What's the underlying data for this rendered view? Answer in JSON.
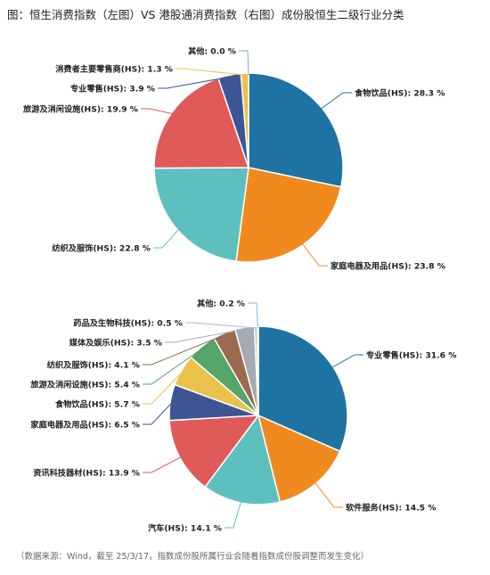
{
  "title": "图：恒生消费指数（左图）VS 港股通消费指数（右图）成份股恒生二级行业分类",
  "source": "（数据来源：Wind，截至 25/3/17，指数成份股所属行业会随着指数成份股调整而发生变化）",
  "chart_data": [
    {
      "type": "pie",
      "title": "",
      "slices": [
        {
          "label": "食物饮品(HS): 28.3 %",
          "value": 28.3,
          "color": "#1f73a3"
        },
        {
          "label": "家庭电器及用品(HS): 23.8 %",
          "value": 23.8,
          "color": "#f08a1e"
        },
        {
          "label": "纺织及服饰(HS): 22.8 %",
          "value": 22.8,
          "color": "#5ec0be"
        },
        {
          "label": "旅游及消闲设施(HS): 19.9 %",
          "value": 19.9,
          "color": "#e05a5a"
        },
        {
          "label": "专业零售(HS): 3.9 %",
          "value": 3.9,
          "color": "#3e5594"
        },
        {
          "label": "消费者主要零售商(HS): 1.3 %",
          "value": 1.3,
          "color": "#e8c24a"
        },
        {
          "label": "其他: 0.0 %",
          "value": 0.0,
          "color": "#8aa6c1"
        }
      ]
    },
    {
      "type": "pie",
      "title": "",
      "slices": [
        {
          "label": "专业零售(HS): 31.6 %",
          "value": 31.6,
          "color": "#1f73a3"
        },
        {
          "label": "软件服务(HS): 14.5 %",
          "value": 14.5,
          "color": "#f08a1e"
        },
        {
          "label": "汽车(HS): 14.1 %",
          "value": 14.1,
          "color": "#5ec0be"
        },
        {
          "label": "资讯科技器材(HS): 13.9 %",
          "value": 13.9,
          "color": "#e05a5a"
        },
        {
          "label": "家庭电器及用品(HS): 6.5 %",
          "value": 6.5,
          "color": "#3e5594"
        },
        {
          "label": "食物饮品(HS): 5.7 %",
          "value": 5.7,
          "color": "#e8c24a"
        },
        {
          "label": "旅游及消闲设施(HS): 5.4 %",
          "value": 5.4,
          "color": "#55a46a"
        },
        {
          "label": "纺织及服饰(HS): 4.1 %",
          "value": 4.1,
          "color": "#9c6a4f"
        },
        {
          "label": "媒体及娱乐(HS): 3.5 %",
          "value": 3.5,
          "color": "#a4abb5"
        },
        {
          "label": "药品及生物科技(HS): 0.5 %",
          "value": 0.5,
          "color": "#b8b0d6"
        },
        {
          "label": "其他: 0.2 %",
          "value": 0.2,
          "color": "#7fb6e0"
        }
      ]
    }
  ]
}
